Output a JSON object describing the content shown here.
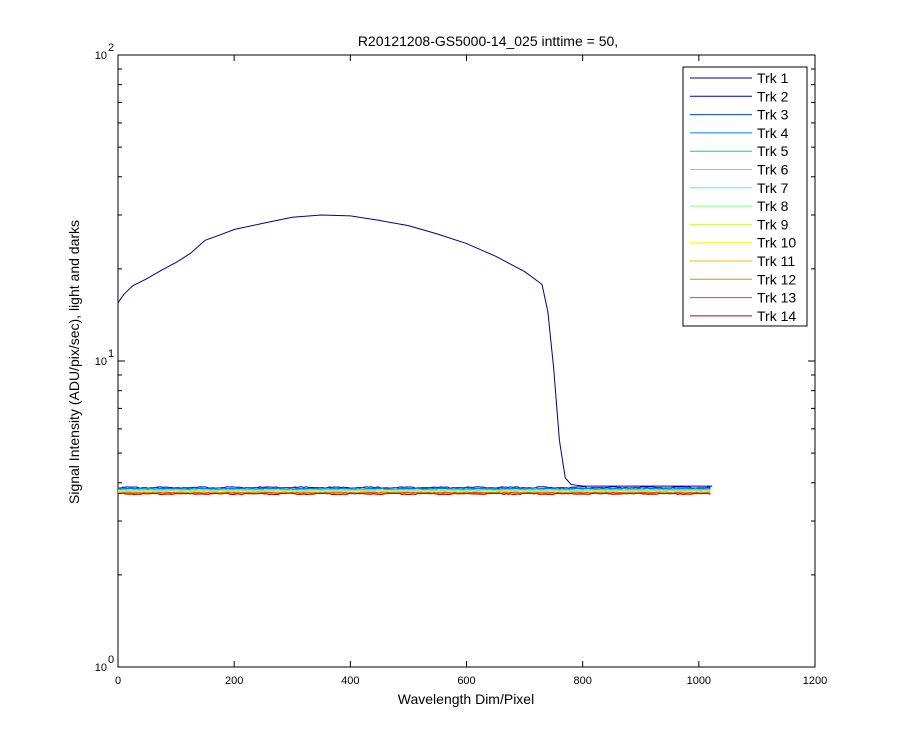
{
  "chart_data": {
    "type": "line",
    "title": "R20121208-GS5000-14_025 inttime = 50,",
    "xlabel": "Wavelength Dim/Pixel",
    "ylabel": "Signal Intensity (ADU/pix/sec), light and darks",
    "xlim": [
      0,
      1200
    ],
    "ylim": [
      1,
      100
    ],
    "yscale": "log",
    "grid": false,
    "legend_position": "top-right",
    "x_ticks": [
      0,
      200,
      400,
      600,
      800,
      1000,
      1200
    ],
    "x_tick_labels": [
      "0",
      "200",
      "400",
      "600",
      "800",
      "1000",
      "1200"
    ],
    "y_ticks": [
      {
        "value": 1,
        "base": "10",
        "exp": "0"
      },
      {
        "value": 10,
        "base": "10",
        "exp": "1"
      },
      {
        "value": 100,
        "base": "10",
        "exp": "2"
      }
    ],
    "series": [
      {
        "name": "Trk 1",
        "color": "#00008f",
        "x": [
          0,
          10,
          25,
          50,
          75,
          100,
          125,
          150,
          175,
          200,
          250,
          300,
          350,
          400,
          450,
          500,
          550,
          600,
          650,
          700,
          730,
          740,
          750,
          760,
          770,
          780,
          800,
          850,
          900,
          950,
          1000,
          1023
        ],
        "y": [
          15.5,
          16.5,
          17.6,
          18.6,
          19.8,
          21.0,
          22.5,
          24.8,
          25.8,
          26.9,
          28.2,
          29.5,
          30.0,
          29.8,
          28.8,
          27.7,
          26.0,
          24.2,
          22.0,
          19.6,
          17.8,
          14.5,
          9.5,
          5.5,
          4.15,
          3.95,
          3.9,
          3.9,
          3.9,
          3.9,
          3.9,
          3.9
        ]
      },
      {
        "name": "Trk 2",
        "color": "#0000bf",
        "level": 3.86
      },
      {
        "name": "Trk 3",
        "color": "#0040ff",
        "level": 3.84
      },
      {
        "name": "Trk 4",
        "color": "#0080ff",
        "level": 3.82
      },
      {
        "name": "Trk 5",
        "color": "#00bfff",
        "level": 3.8
      },
      {
        "name": "Trk 6",
        "color": "#10ffef",
        "level": 3.78
      },
      {
        "name": "Trk 7",
        "color": "#40ffbf",
        "level": 3.77
      },
      {
        "name": "Trk 8",
        "color": "#80ff80",
        "level": 3.76
      },
      {
        "name": "Trk 9",
        "color": "#bfff40",
        "level": 3.75
      },
      {
        "name": "Trk 10",
        "color": "#efff10",
        "level": 3.74
      },
      {
        "name": "Trk 11",
        "color": "#ffbf00",
        "level": 3.72
      },
      {
        "name": "Trk 12",
        "color": "#ff8000",
        "level": 3.71
      },
      {
        "name": "Trk 13",
        "color": "#ff4000",
        "level": 3.7
      },
      {
        "name": "Trk 14",
        "color": "#bf0000",
        "level": 3.68
      }
    ],
    "dark_x_range": [
      0,
      1023
    ]
  }
}
